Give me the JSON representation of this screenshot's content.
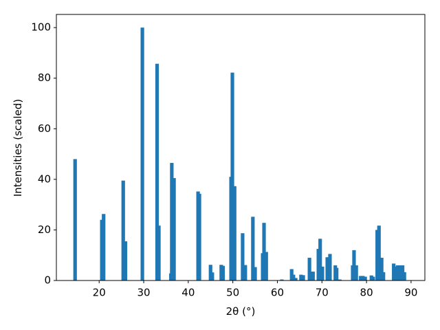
{
  "chart_data": {
    "type": "bar",
    "xlabel": "2θ (°)",
    "ylabel": "Intensities (scaled)",
    "color": "#1f77b4",
    "x": [
      14.6,
      20.6,
      21.0,
      25.4,
      25.9,
      29.7,
      33.0,
      33.4,
      36.1,
      36.3,
      36.8,
      42.2,
      42.5,
      45.0,
      45.4,
      47.4,
      47.8,
      49.6,
      49.9,
      50.4,
      52.2,
      52.8,
      54.5,
      55.0,
      56.7,
      57.0,
      57.5,
      61.0,
      63.2,
      63.6,
      64.1,
      65.3,
      65.8,
      67.2,
      67.6,
      68.0,
      69.2,
      69.6,
      70.1,
      71.2,
      71.8,
      73.0,
      73.3,
      74.0,
      76.9,
      77.2,
      77.7,
      78.7,
      79.2,
      79.7,
      81.1,
      81.5,
      82.4,
      82.8,
      83.4,
      83.8,
      86.1,
      86.6,
      87.0,
      87.5,
      88.1,
      88.5
    ],
    "values": [
      48,
      24,
      26.3,
      39.5,
      15.5,
      100,
      85.7,
      21.7,
      2.8,
      46.5,
      40.5,
      35.2,
      34.3,
      6.2,
      3.2,
      6.2,
      5.8,
      41,
      82.2,
      37.3,
      18.7,
      6.1,
      25.2,
      5.3,
      10.8,
      22.8,
      11.3,
      0.4,
      4.5,
      2.3,
      1,
      2.3,
      2.1,
      9,
      3.5,
      3.5,
      12.5,
      16.5,
      5.5,
      9.2,
      10.5,
      6,
      5,
      0.4,
      6,
      12,
      6,
      1.8,
      1.8,
      1.5,
      2,
      1.5,
      20,
      21.7,
      9,
      3.3,
      6.7,
      5.5,
      6,
      6,
      6,
      3.3
    ],
    "xlim": [
      10.4,
      93.1
    ],
    "ylim": [
      0,
      105.2
    ],
    "xticks": [
      20,
      30,
      40,
      50,
      60,
      70,
      80,
      90
    ],
    "yticks": [
      0,
      20,
      40,
      60,
      80,
      100
    ]
  }
}
